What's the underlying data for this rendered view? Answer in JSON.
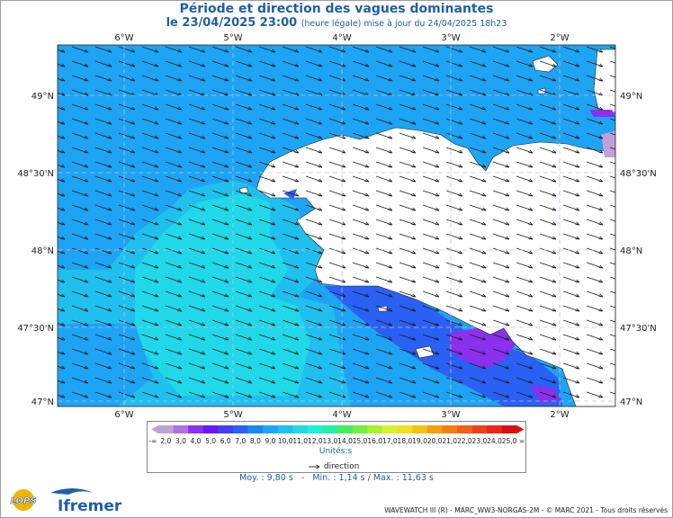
{
  "title": "Période et direction des vagues dominantes",
  "subtitle_main": "le 23/04/2025 23:00",
  "subtitle_note": "(heure légale) mise à jour du 24/04/2025 18h23",
  "longitude_labels": [
    "6°W",
    "5°W",
    "4°W",
    "3°W",
    "2°W"
  ],
  "latitude_labels": [
    "49°N",
    "48°30'N",
    "48°N",
    "47°30'N",
    "47°N"
  ],
  "legend": {
    "min_label": "-∞",
    "max_label": "∞",
    "ticks": [
      "2,0",
      "3,0",
      "4,0",
      "5,0",
      "6,0",
      "7,0",
      "8,0",
      "9,0",
      "10,0",
      "11,0",
      "12,0",
      "13,0",
      "14,0",
      "15,0",
      "16,0",
      "17,0",
      "18,0",
      "19,0",
      "20,0",
      "21,0",
      "22,0",
      "23,0",
      "24,0",
      "25,0"
    ],
    "colors": [
      "#c0a0d8",
      "#b070e0",
      "#8a30ee",
      "#6a18f4",
      "#4040f0",
      "#2a60f4",
      "#1888f4",
      "#1ea4f4",
      "#20c0ee",
      "#20d8e8",
      "#1ef0d8",
      "#28f0a0",
      "#40f060",
      "#70f040",
      "#a8f030",
      "#d8f030",
      "#f0e020",
      "#f4c018",
      "#f4a010",
      "#f48010",
      "#f46018",
      "#f04018",
      "#e82818",
      "#d81010"
    ],
    "units": "Unités:s",
    "direction_label": "direction"
  },
  "stats": {
    "mean": "Moy. : 9,80 s",
    "range": "Min. : 1,14 s / Max. : 11,63 s",
    "sep": "-"
  },
  "credit": "WAVEWATCH III (R) - MARC_WW3-NORGAS-2M - © MARC 2021 - Tous droits réservés",
  "logos": {
    "lops": "LOPS",
    "ifremer": "Ifremer"
  },
  "colors": {
    "sea_main": "#1ea4f4",
    "sea_light": "#20c0ee",
    "sea_cyan": "#20d8e8",
    "coast_dark": "#2a60f4",
    "bay_purple": "#8a30ee",
    "land": "#ffffff",
    "title": "#1f5fa8"
  }
}
